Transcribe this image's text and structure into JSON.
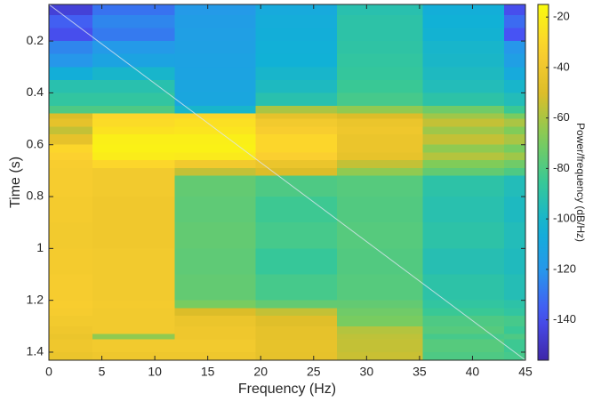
{
  "chart_data": {
    "type": "heatmap",
    "xlabel": "Frequency (Hz)",
    "ylabel": "Time (s)",
    "colorbar_label": "Power/frequency (dB/Hz)",
    "colormap": "parula",
    "x_edges": [
      0,
      4.1,
      11.9,
      19.5,
      27.2,
      35.3,
      43,
      45
    ],
    "y_edges": [
      0.059,
      0.1,
      0.15,
      0.2,
      0.25,
      0.3,
      0.35,
      0.4,
      0.45,
      0.48,
      0.5,
      0.53,
      0.56,
      0.6,
      0.63,
      0.66,
      0.69,
      0.72,
      0.8,
      0.9,
      1.0,
      1.1,
      1.2,
      1.23,
      1.26,
      1.3,
      1.33,
      1.35,
      1.4,
      1.431
    ],
    "values": [
      [
        -145,
        -130,
        -118,
        -108,
        -92,
        -105,
        -140
      ],
      [
        -135,
        -125,
        -116,
        -106,
        -90,
        -103,
        -132
      ],
      [
        -140,
        -128,
        -115,
        -105,
        -90,
        -102,
        -138
      ],
      [
        -125,
        -118,
        -114,
        -104,
        -89,
        -100,
        -120
      ],
      [
        -120,
        -112,
        -113,
        -103,
        -88,
        -99,
        -115
      ],
      [
        -105,
        -100,
        -112,
        -100,
        -87,
        -97,
        -108
      ],
      [
        -92,
        -92,
        -111,
        -97,
        -85,
        -95,
        -100
      ],
      [
        -88,
        -88,
        -110,
        -92,
        -82,
        -90,
        -95
      ],
      [
        -80,
        -80,
        -100,
        -60,
        -65,
        -72,
        -85
      ],
      [
        -50,
        -30,
        -30,
        -45,
        -50,
        -62,
        -70
      ],
      [
        -45,
        -28,
        -26,
        -38,
        -42,
        -55,
        -60
      ],
      [
        -55,
        -25,
        -24,
        -35,
        -40,
        -62,
        -68
      ],
      [
        -45,
        -20,
        -20,
        -30,
        -42,
        -55,
        -60
      ],
      [
        -30,
        -19,
        -19,
        -30,
        -42,
        -65,
        -70
      ],
      [
        -32,
        -21,
        -22,
        -33,
        -44,
        -58,
        -62
      ],
      [
        -35,
        -30,
        -38,
        -42,
        -55,
        -68,
        -72
      ],
      [
        -36,
        -38,
        -55,
        -50,
        -65,
        -75,
        -80
      ],
      [
        -36,
        -38,
        -75,
        -80,
        -78,
        -90,
        -95
      ],
      [
        -37,
        -39,
        -76,
        -84,
        -79,
        -92,
        -97
      ],
      [
        -38,
        -39,
        -75,
        -82,
        -78,
        -90,
        -95
      ],
      [
        -37,
        -38,
        -76,
        -86,
        -79,
        -93,
        -96
      ],
      [
        -36,
        -38,
        -75,
        -82,
        -78,
        -90,
        -94
      ],
      [
        -35,
        -37,
        -70,
        -75,
        -75,
        -88,
        -90
      ],
      [
        -36,
        -38,
        -50,
        -55,
        -72,
        -85,
        -88
      ],
      [
        -38,
        -38,
        -42,
        -48,
        -70,
        -80,
        -82
      ],
      [
        -40,
        -38,
        -40,
        -45,
        -58,
        -78,
        -85
      ],
      [
        -42,
        -65,
        -40,
        -45,
        -56,
        -82,
        -80
      ],
      [
        -40,
        -38,
        -38,
        -44,
        -55,
        -78,
        -84
      ],
      [
        -42,
        -40,
        -40,
        -45,
        -54,
        -80,
        -82
      ]
    ],
    "xlim": [
      0,
      45
    ],
    "xticks": [
      0,
      5,
      10,
      15,
      20,
      25,
      30,
      35,
      40,
      45
    ],
    "ylim": [
      0.059,
      1.431
    ],
    "yticks": [
      0.2,
      0.4,
      0.6,
      0.8,
      1,
      1.2,
      1.4
    ],
    "y_reversed": true,
    "clim": [
      -156,
      -15
    ],
    "cticks": [
      -140,
      -120,
      -100,
      -80,
      -60,
      -40,
      -20
    ]
  }
}
